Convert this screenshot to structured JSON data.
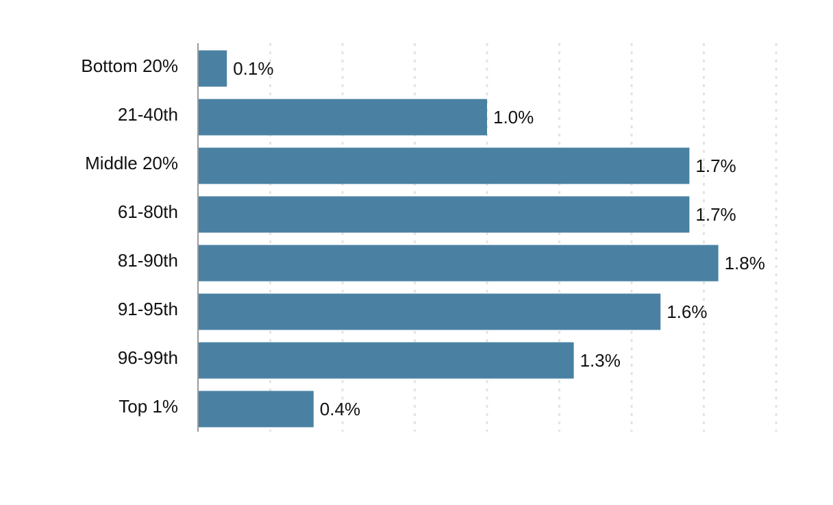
{
  "chart_data": {
    "type": "bar",
    "orientation": "horizontal",
    "title": "",
    "xlabel": "",
    "ylabel": "",
    "categories": [
      "Bottom 20%",
      "21-40th",
      "Middle 20%",
      "61-80th",
      "81-90th",
      "91-95th",
      "96-99th",
      "Top 1%"
    ],
    "values": [
      0.1,
      1.0,
      1.7,
      1.7,
      1.8,
      1.6,
      1.3,
      0.4
    ],
    "value_labels": [
      "0.1%",
      "1.0%",
      "1.7%",
      "1.7%",
      "1.8%",
      "1.6%",
      "1.3%",
      "0.4%"
    ],
    "xlim": [
      0,
      2.0
    ],
    "grid": true,
    "bar_color": "#4a81a3"
  }
}
